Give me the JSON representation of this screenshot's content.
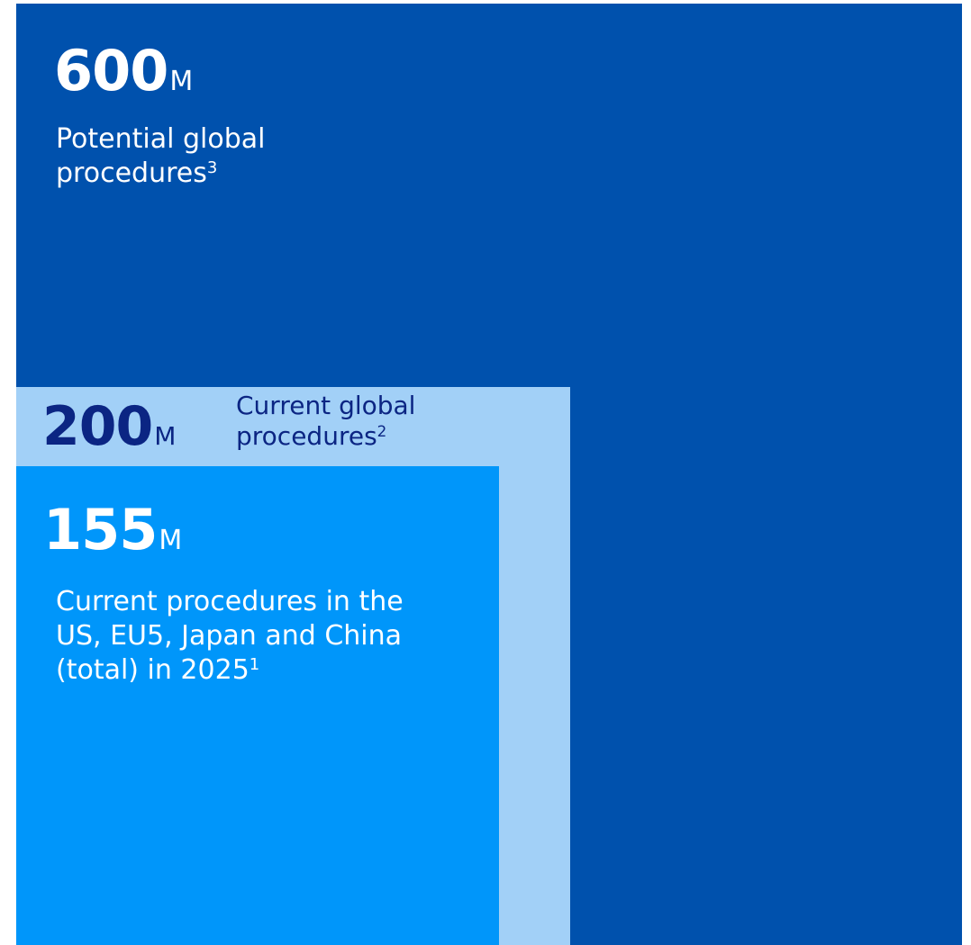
{
  "chart_data": {
    "type": "nested-area",
    "unit": "M",
    "series": [
      {
        "value": 600,
        "value_text": "600",
        "unit": "M",
        "label_lines": [
          "Potential global",
          "procedures"
        ],
        "footnote": "3",
        "color": "#0051ad"
      },
      {
        "value": 200,
        "value_text": "200",
        "unit": "M",
        "label_lines": [
          "Current global",
          "procedures"
        ],
        "footnote": "2",
        "color": "#a2d0f7"
      },
      {
        "value": 155,
        "value_text": "155",
        "unit": "M",
        "label_lines": [
          "Current procedures in the",
          "US, EU5, Japan and China",
          "(total) in 2025"
        ],
        "footnote": "1",
        "color": "#0096fa"
      }
    ]
  }
}
